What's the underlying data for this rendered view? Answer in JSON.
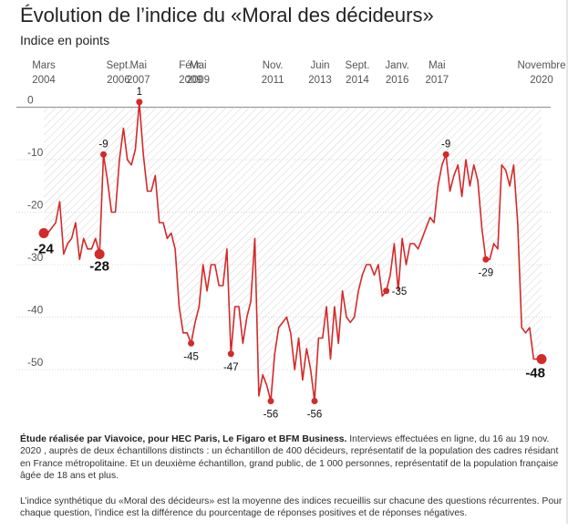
{
  "title": "Évolution de l’indice du «Moral des décideurs»",
  "subtitle": "Indice en points",
  "chart_data": {
    "type": "line",
    "title": "Évolution de l’indice du «Moral des décideurs»",
    "ylabel": "Indice en points",
    "xlabel": "",
    "ylim": [
      -59,
      2
    ],
    "grid": true,
    "x_ticks": [
      {
        "line1": "Mars",
        "line2": "2004",
        "t": 0
      },
      {
        "line1": "Sept.",
        "line2": "2006",
        "t": 30
      },
      {
        "line1": "Mai",
        "line2": "2007",
        "t": 38
      },
      {
        "line1": "Févr.",
        "line2": "2009",
        "t": 59
      },
      {
        "line1": "Mai",
        "line2": "2009",
        "t": 62
      },
      {
        "line1": "Nov.",
        "line2": "2011",
        "t": 92
      },
      {
        "line1": "Juin",
        "line2": "2013",
        "t": 111
      },
      {
        "line1": "Sept.",
        "line2": "2014",
        "t": 126
      },
      {
        "line1": "Janv.",
        "line2": "2016",
        "t": 142
      },
      {
        "line1": "Mai",
        "line2": "2017",
        "t": 158
      },
      {
        "line1": "Novembre",
        "line2": "2020",
        "t": 200
      }
    ],
    "y_ticks": [
      0,
      -10,
      -20,
      -30,
      -40,
      -50
    ],
    "series": [
      {
        "values": [
          [
            0,
            -24
          ],
          [
            1,
            -24
          ],
          [
            2,
            -23
          ],
          [
            3,
            -22
          ],
          [
            4,
            -18
          ],
          [
            5,
            -28
          ],
          [
            6,
            -26
          ],
          [
            7,
            -25
          ],
          [
            8,
            -22
          ],
          [
            9,
            -29
          ],
          [
            10,
            -25
          ],
          [
            11,
            -27
          ],
          [
            12,
            -27
          ],
          [
            13,
            -25
          ],
          [
            14,
            -28
          ],
          [
            15,
            -9
          ],
          [
            16,
            -14
          ],
          [
            17,
            -20
          ],
          [
            18,
            -20
          ],
          [
            19,
            -10
          ],
          [
            20,
            -4
          ],
          [
            21,
            -10
          ],
          [
            22,
            -11
          ],
          [
            23,
            -8
          ],
          [
            24,
            1
          ],
          [
            25,
            -9
          ],
          [
            26,
            -16
          ],
          [
            27,
            -16
          ],
          [
            28,
            -13
          ],
          [
            29,
            -22
          ],
          [
            30,
            -22
          ],
          [
            31,
            -25
          ],
          [
            32,
            -24
          ],
          [
            33,
            -27
          ],
          [
            34,
            -38
          ],
          [
            35,
            -43
          ],
          [
            36,
            -43
          ],
          [
            37,
            -45
          ],
          [
            38,
            -41
          ],
          [
            39,
            -38
          ],
          [
            40,
            -30
          ],
          [
            41,
            -35
          ],
          [
            42,
            -30
          ],
          [
            43,
            -30
          ],
          [
            44,
            -34
          ],
          [
            45,
            -34
          ],
          [
            46,
            -27
          ],
          [
            47,
            -47
          ],
          [
            48,
            -38
          ],
          [
            49,
            -38
          ],
          [
            50,
            -45
          ],
          [
            51,
            -40
          ],
          [
            52,
            -37
          ],
          [
            53,
            -25
          ],
          [
            54,
            -55
          ],
          [
            55,
            -51
          ],
          [
            56,
            -53
          ],
          [
            57,
            -56
          ],
          [
            58,
            -47
          ],
          [
            59,
            -42
          ],
          [
            60,
            -41
          ],
          [
            61,
            -40
          ],
          [
            62,
            -43
          ],
          [
            63,
            -50
          ],
          [
            64,
            -44
          ],
          [
            65,
            -52
          ],
          [
            66,
            -46
          ],
          [
            67,
            -50
          ],
          [
            68,
            -56
          ],
          [
            69,
            -44
          ],
          [
            70,
            -44
          ],
          [
            71,
            -38
          ],
          [
            72,
            -48
          ],
          [
            73,
            -38
          ],
          [
            74,
            -45
          ],
          [
            75,
            -35
          ],
          [
            76,
            -40
          ],
          [
            77,
            -41
          ],
          [
            78,
            -40
          ],
          [
            79,
            -35
          ],
          [
            80,
            -32
          ],
          [
            81,
            -30
          ],
          [
            82,
            -30
          ],
          [
            83,
            -32
          ],
          [
            84,
            -30
          ],
          [
            85,
            -36
          ],
          [
            86,
            -35
          ],
          [
            87,
            -32
          ],
          [
            88,
            -26
          ],
          [
            89,
            -35
          ],
          [
            90,
            -25
          ],
          [
            91,
            -30
          ],
          [
            92,
            -26
          ],
          [
            93,
            -26
          ],
          [
            94,
            -27
          ],
          [
            95,
            -25
          ],
          [
            96,
            -23
          ],
          [
            97,
            -21
          ],
          [
            98,
            -22
          ],
          [
            99,
            -15
          ],
          [
            100,
            -11
          ],
          [
            101,
            -9
          ],
          [
            102,
            -16
          ],
          [
            103,
            -13
          ],
          [
            104,
            -11
          ],
          [
            105,
            -17
          ],
          [
            106,
            -10
          ],
          [
            107,
            -15
          ],
          [
            108,
            -11
          ],
          [
            109,
            -14
          ],
          [
            110,
            -23
          ],
          [
            111,
            -29
          ],
          [
            112,
            -29
          ],
          [
            113,
            -26
          ],
          [
            114,
            -27
          ],
          [
            115,
            -11
          ],
          [
            116,
            -12
          ],
          [
            117,
            -15
          ],
          [
            118,
            -11
          ],
          [
            119,
            -22
          ],
          [
            120,
            -42
          ],
          [
            121,
            -43
          ],
          [
            122,
            -42
          ],
          [
            123,
            -48
          ],
          [
            124,
            -48
          ],
          [
            125,
            -48
          ]
        ]
      }
    ],
    "labels": [
      {
        "text": "-24",
        "t": 0,
        "v": -24,
        "bold": true
      },
      {
        "text": "-28",
        "t": 14,
        "v": -28,
        "bold": true
      },
      {
        "text": "-9",
        "t": 15,
        "v": -9,
        "bold": false
      },
      {
        "text": "1",
        "t": 24,
        "v": 1,
        "bold": false
      },
      {
        "text": "-45",
        "t": 37,
        "v": -45,
        "bold": false
      },
      {
        "text": "-47",
        "t": 47,
        "v": -47,
        "bold": false
      },
      {
        "text": "-56",
        "t": 57,
        "v": -56,
        "bold": false
      },
      {
        "text": "-56",
        "t": 68,
        "v": -56,
        "bold": false
      },
      {
        "text": "-35",
        "t": 86,
        "v": -35,
        "bold": false
      },
      {
        "text": "-9",
        "t": 101,
        "v": -9,
        "bold": false
      },
      {
        "text": "-29",
        "t": 111,
        "v": -29,
        "bold": false
      },
      {
        "text": "-48",
        "t": 125,
        "v": -48,
        "bold": true
      }
    ],
    "colors": {
      "line": "#d32a2a",
      "grid": "#cccccc",
      "zero": "#999999",
      "hatch": "#dcdcdc"
    }
  },
  "notes": {
    "source_bold": "Étude réalisée par Viavoice, pour HEC Paris, Le Figaro et BFM Business.",
    "source_text": " Interviews effectuées en ligne, du 16 au 19 nov. 2020 , auprès de deux échantillons distincts : un échantillon de 400 décideurs, représentatif de la population des cadres résidant en France métropolitaine. Et un deuxième échantillon, grand public, de 1 000 personnes, représentatif de la population française âgée de 18 ans et plus.",
    "method_text": "L’indice synthétique du «Moral des décideurs» est la moyenne des indices recueillis sur chacune des questions récurrentes. Pour chaque question, l’indice est la différence du pourcentage de réponses positives et de réponses négatives."
  }
}
